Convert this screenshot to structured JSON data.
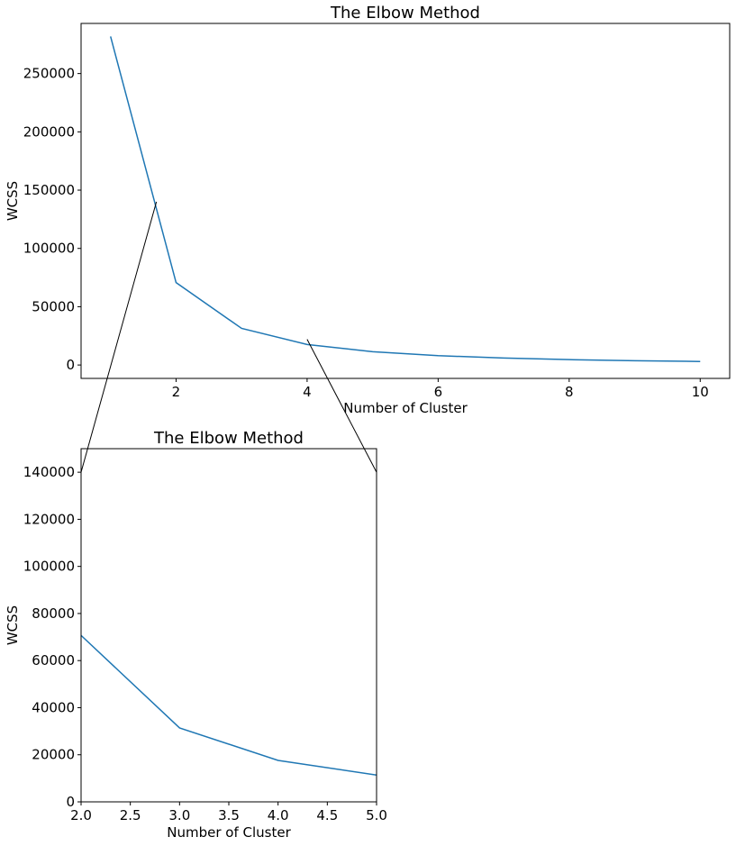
{
  "colors": {
    "series": "#1f77b4",
    "axes": "#000000",
    "background": "#ffffff"
  },
  "chart_data": [
    {
      "type": "line",
      "title": "The Elbow Method",
      "xlabel": "Number of Cluster",
      "ylabel": "WCSS",
      "xlim": [
        0.55,
        10.45
      ],
      "ylim": [
        -11500,
        293000
      ],
      "xticks": [
        2,
        4,
        6,
        8,
        10
      ],
      "xtick_labels": [
        "2",
        "4",
        "6",
        "8",
        "10"
      ],
      "yticks": [
        0,
        50000,
        100000,
        150000,
        200000,
        250000
      ],
      "ytick_labels": [
        "0",
        "50000",
        "100000",
        "150000",
        "200000",
        "250000"
      ],
      "grid": false,
      "x": [
        1,
        2,
        3,
        4,
        5,
        6,
        7,
        8,
        9,
        10
      ],
      "series": [
        {
          "values": [
            281800,
            70700,
            31400,
            17600,
            11400,
            8000,
            6000,
            4600,
            3700,
            3000
          ]
        }
      ]
    },
    {
      "type": "line",
      "title": "The Elbow Method",
      "xlabel": "Number of Cluster",
      "ylabel": "WCSS",
      "xlim": [
        2.0,
        5.0
      ],
      "ylim": [
        0,
        150000
      ],
      "xticks": [
        2.0,
        2.5,
        3.0,
        3.5,
        4.0,
        4.5,
        5.0
      ],
      "xtick_labels": [
        "2.0",
        "2.5",
        "3.0",
        "3.5",
        "4.0",
        "4.5",
        "5.0"
      ],
      "yticks": [
        0,
        20000,
        40000,
        60000,
        80000,
        100000,
        120000,
        140000
      ],
      "ytick_labels": [
        "0",
        "20000",
        "40000",
        "60000",
        "80000",
        "100000",
        "120000",
        "140000"
      ],
      "grid": false,
      "x": [
        2,
        3,
        4,
        5
      ],
      "series": [
        {
          "values": [
            70700,
            31400,
            17600,
            11400
          ]
        }
      ]
    }
  ]
}
